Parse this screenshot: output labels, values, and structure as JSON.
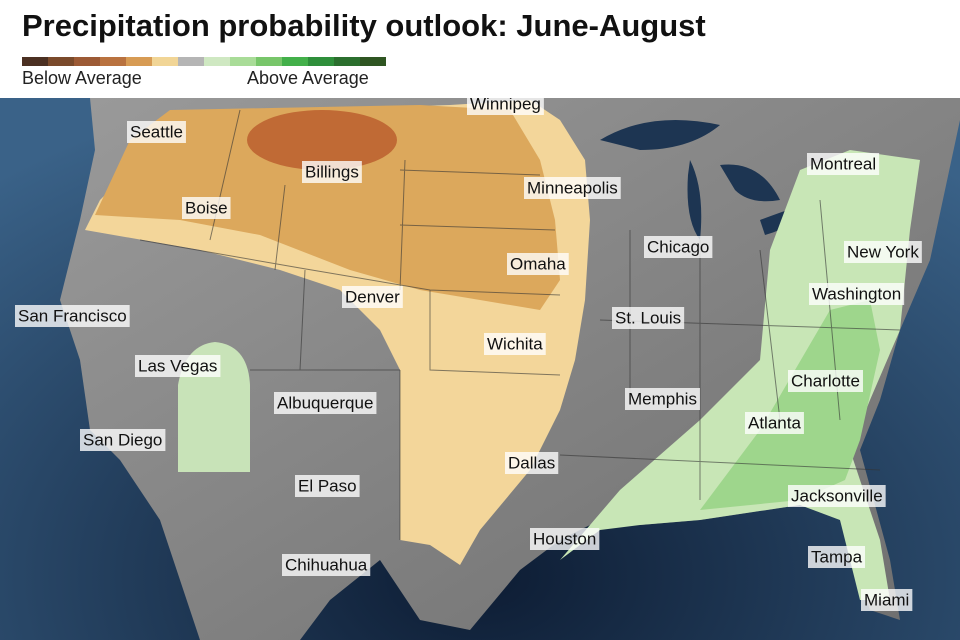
{
  "title": "Precipitation probability outlook: June-August",
  "legend": {
    "colors": [
      "#4b3022",
      "#7a4a2b",
      "#9c5a35",
      "#b9723f",
      "#d79b54",
      "#f1d596",
      "#b5b5b5",
      "#cfe8c2",
      "#a9dc98",
      "#78c66a",
      "#43b04a",
      "#2f8f3b",
      "#2b6f2e",
      "#2f5522"
    ],
    "below_label": "Below Average",
    "above_label": "Above Average"
  },
  "cities": [
    "Winnipeg",
    "Seattle",
    "Billings",
    "Boise",
    "Minneapolis",
    "Montreal",
    "Chicago",
    "New York",
    "Omaha",
    "Washington",
    "Denver",
    "San Francisco",
    "St. Louis",
    "Wichita",
    "Las Vegas",
    "Charlotte",
    "Memphis",
    "Albuquerque",
    "Atlanta",
    "San Diego",
    "Dallas",
    "El Paso",
    "Jacksonville",
    "Houston",
    "Tampa",
    "Chihuahua",
    "Miami"
  ]
}
